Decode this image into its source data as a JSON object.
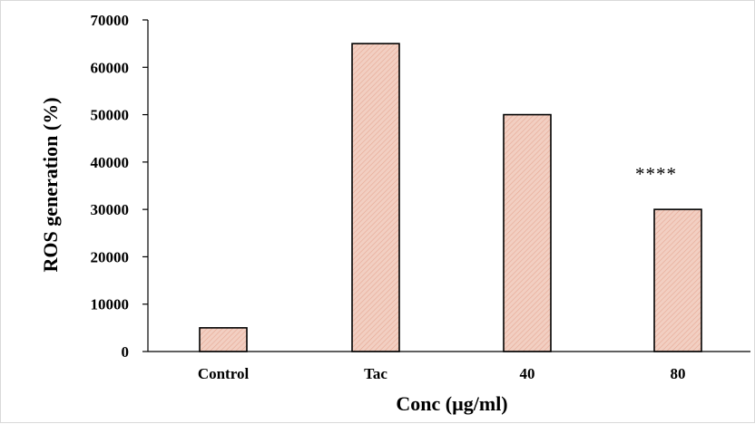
{
  "chart_data": {
    "type": "bar",
    "categories": [
      "Control",
      "Tac",
      "40",
      "80"
    ],
    "values": [
      5000,
      65000,
      50000,
      30000
    ],
    "title": "",
    "xlabel": "Conc (µg/ml)",
    "ylabel": "ROS generation (%)",
    "ylim": [
      0,
      70000
    ],
    "yticks": [
      0,
      10000,
      20000,
      30000,
      40000,
      50000,
      60000,
      70000
    ],
    "grid": false,
    "legend": "none",
    "annotations": [
      {
        "category": "80",
        "text": "****"
      }
    ],
    "colors": {
      "bar_fill": "#f2cfc2",
      "bar_hatch": "#e6a894",
      "bar_edge": "#000000"
    }
  }
}
